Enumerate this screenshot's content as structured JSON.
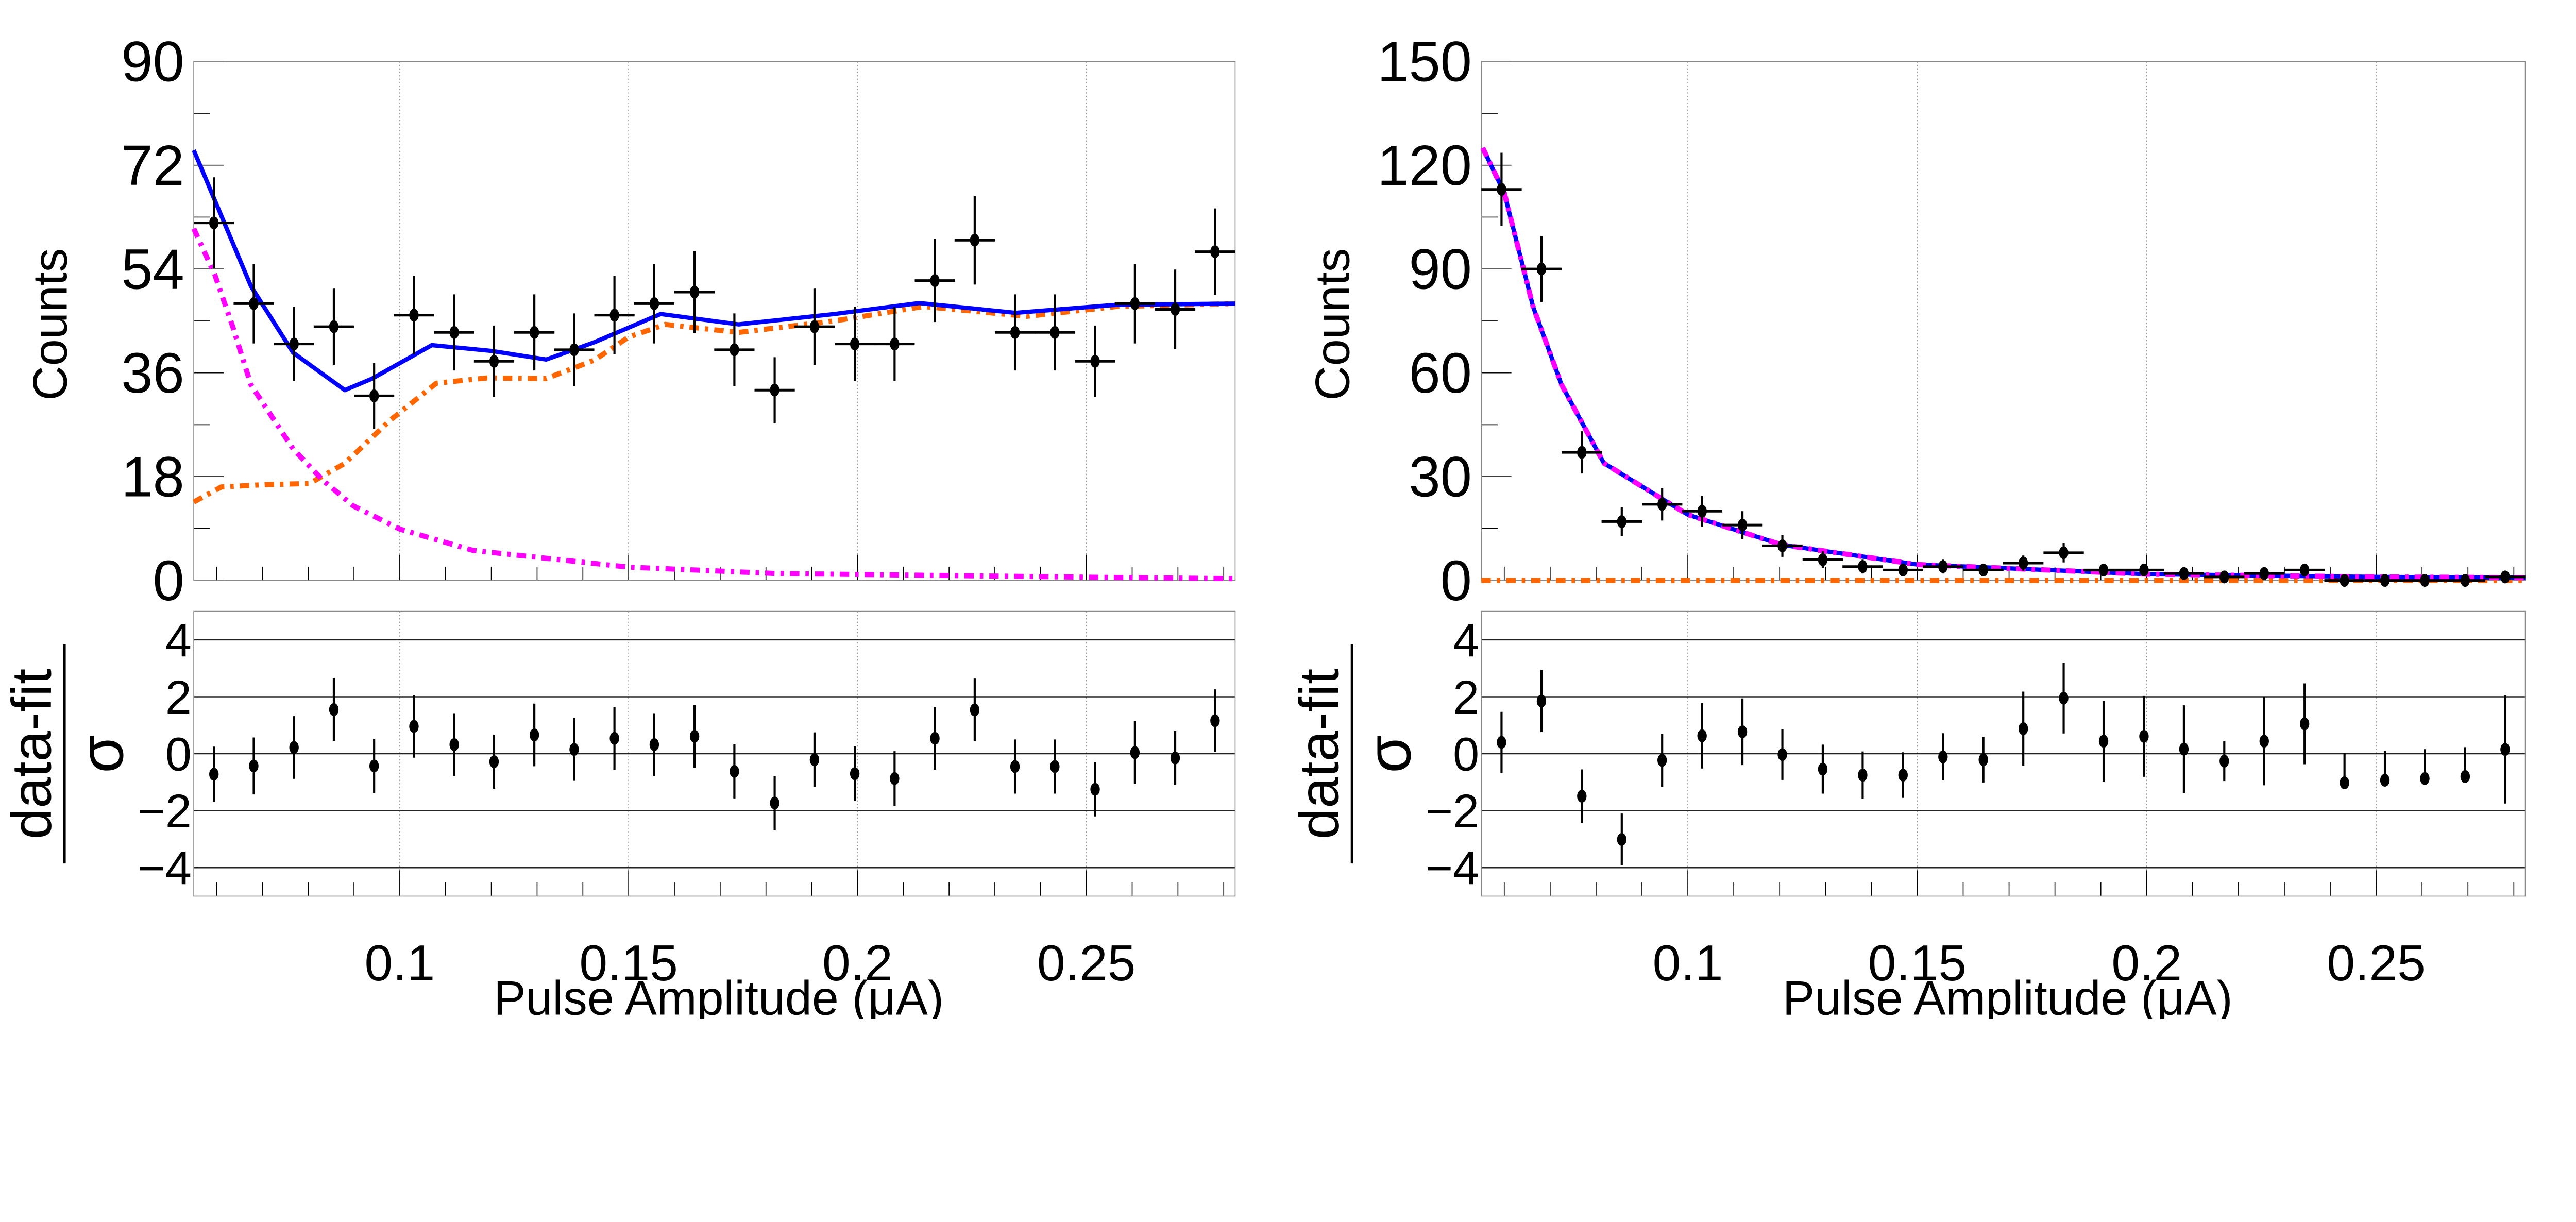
{
  "chart_data": [
    {
      "type": "scatter",
      "xlabel": "Pulse Amplitude (μA)",
      "ylabel": "Counts",
      "xlim": [
        0.055,
        0.2825
      ],
      "ylim": [
        0,
        90
      ],
      "grid": "vertical dotted at major x ticks",
      "xticks": [
        0.1,
        0.15,
        0.2,
        0.25
      ],
      "xtick_labels": [
        "0.1",
        "0.15",
        "0.2",
        "0.25"
      ],
      "yticks": [
        0,
        18,
        36,
        54,
        72,
        90
      ],
      "ytick_labels": [
        "0",
        "18",
        "36",
        "54",
        "72",
        "90"
      ],
      "data": {
        "x": [
          0.0594,
          0.0681,
          0.0769,
          0.0856,
          0.0944,
          0.1031,
          0.1119,
          0.1206,
          0.1294,
          0.1381,
          0.1469,
          0.1556,
          0.1644,
          0.1731,
          0.1819,
          0.1906,
          0.1994,
          0.2081,
          0.2169,
          0.2256,
          0.2344,
          0.2431,
          0.2519,
          0.2606,
          0.2694,
          0.2781
        ],
        "xerr": 0.0044,
        "y": [
          62,
          48,
          41,
          44,
          32,
          46,
          43,
          38,
          43,
          40,
          46,
          48,
          50,
          40,
          33,
          44,
          41,
          41,
          52,
          59,
          43,
          43,
          38,
          48,
          47,
          57
        ],
        "yerr": [
          7.9,
          6.9,
          6.4,
          6.6,
          5.7,
          6.8,
          6.6,
          6.2,
          6.6,
          6.3,
          6.8,
          6.9,
          7.1,
          6.3,
          5.7,
          6.6,
          6.4,
          6.4,
          7.2,
          7.7,
          6.6,
          6.6,
          6.2,
          6.9,
          6.9,
          7.5
        ]
      },
      "curves": [
        {
          "color": "#ff6600",
          "style": "dash-dot",
          "points": [
            [
              0.055,
              13.6
            ],
            [
              0.061,
              16.2
            ],
            [
              0.0705,
              16.6
            ],
            [
              0.0803,
              16.8
            ],
            [
              0.088,
              20.3
            ],
            [
              0.0978,
              27.7
            ],
            [
              0.108,
              34.2
            ],
            [
              0.119,
              35.1
            ],
            [
              0.132,
              35.0
            ],
            [
              0.1425,
              38.2
            ],
            [
              0.15,
              42.2
            ],
            [
              0.158,
              44.4
            ],
            [
              0.174,
              43.0
            ],
            [
              0.195,
              45.0
            ],
            [
              0.2145,
              47.5
            ],
            [
              0.237,
              45.8
            ],
            [
              0.2567,
              47.5
            ],
            [
              0.2825,
              48.0
            ]
          ]
        },
        {
          "color": "#ff00ff",
          "style": "dash-dot",
          "points": [
            [
              0.055,
              61
            ],
            [
              0.0596,
              53
            ],
            [
              0.0636,
              43.8
            ],
            [
              0.0675,
              33.9
            ],
            [
              0.0767,
              22.8
            ],
            [
              0.0833,
              17.3
            ],
            [
              0.0899,
              12.9
            ],
            [
              0.1,
              8.9
            ],
            [
              0.116,
              5.2
            ],
            [
              0.15,
              2.3
            ],
            [
              0.182,
              1.2
            ],
            [
              0.2567,
              0.5
            ],
            [
              0.2825,
              0.3
            ]
          ]
        },
        {
          "color": "#0000ff",
          "style": "solid",
          "points": [
            [
              0.055,
              74.6
            ],
            [
              0.0675,
              51
            ],
            [
              0.0767,
              39.5
            ],
            [
              0.088,
              33
            ],
            [
              0.094,
              35
            ],
            [
              0.107,
              40.8
            ],
            [
              0.12,
              39.8
            ],
            [
              0.132,
              38.3
            ],
            [
              0.1425,
              41.3
            ],
            [
              0.157,
              46.2
            ],
            [
              0.174,
              44.4
            ],
            [
              0.195,
              46.2
            ],
            [
              0.2135,
              48.1
            ],
            [
              0.2345,
              46.4
            ],
            [
              0.2567,
              47.8
            ],
            [
              0.2825,
              48.0
            ]
          ]
        }
      ],
      "residuals": {
        "ylabel_numerator": "data-fit",
        "ylabel_denominator": "σ",
        "ylim": [
          -5,
          5
        ],
        "yticks": [
          -4,
          -2,
          0,
          2,
          4
        ],
        "ytick_labels": [
          "−4",
          "−2",
          "0",
          "2",
          "4"
        ],
        "y": [
          -0.72,
          -0.43,
          0.22,
          1.55,
          -0.43,
          0.96,
          0.32,
          -0.28,
          0.66,
          0.15,
          0.54,
          0.32,
          0.61,
          -0.62,
          -1.73,
          -0.21,
          -0.7,
          -0.87,
          0.54,
          1.54,
          -0.45,
          -0.45,
          -1.25,
          0.04,
          -0.15,
          1.16
        ],
        "yerr_low": [
          0.97,
          1.0,
          1.1,
          1.1,
          0.95,
          1.1,
          1.1,
          0.95,
          1.1,
          1.1,
          1.1,
          1.1,
          1.1,
          0.95,
          0.95,
          0.96,
          0.96,
          0.96,
          1.1,
          1.1,
          0.95,
          0.95,
          0.95,
          1.1,
          0.95,
          1.1
        ],
        "yerr_high": [
          0.97,
          1.0,
          1.1,
          1.1,
          0.95,
          1.1,
          1.1,
          0.95,
          1.1,
          1.1,
          1.1,
          1.1,
          1.1,
          0.95,
          0.95,
          0.96,
          0.96,
          0.96,
          1.1,
          1.1,
          0.95,
          0.95,
          0.95,
          1.1,
          0.95,
          1.1
        ]
      }
    },
    {
      "type": "scatter",
      "xlabel": "Pulse Amplitude (μA)",
      "ylabel": "Counts",
      "xlim": [
        0.055,
        0.2825
      ],
      "ylim": [
        0,
        150
      ],
      "grid": "vertical dotted at major x ticks",
      "xticks": [
        0.1,
        0.15,
        0.2,
        0.25
      ],
      "xtick_labels": [
        "0.1",
        "0.15",
        "0.2",
        "0.25"
      ],
      "yticks": [
        0,
        30,
        60,
        90,
        120,
        150
      ],
      "ytick_labels": [
        "0",
        "30",
        "60",
        "90",
        "120",
        "150"
      ],
      "data": {
        "x": [
          0.0594,
          0.0681,
          0.0769,
          0.0856,
          0.0944,
          0.1031,
          0.1119,
          0.1206,
          0.1294,
          0.1381,
          0.1469,
          0.1556,
          0.1644,
          0.1731,
          0.1819,
          0.1906,
          0.1994,
          0.2081,
          0.2169,
          0.2256,
          0.2344,
          0.2431,
          0.2519,
          0.2606,
          0.2694,
          0.2781
        ],
        "xerr": 0.0044,
        "y": [
          113,
          90,
          37,
          17,
          22,
          20,
          16,
          10,
          6,
          4,
          3,
          4,
          3,
          5,
          8,
          3,
          3,
          2,
          1,
          2,
          3,
          0,
          0,
          0,
          0,
          1
        ],
        "yerr": [
          10.6,
          9.5,
          6.1,
          4.1,
          4.7,
          4.5,
          4.0,
          3.2,
          2.4,
          2.0,
          1.7,
          2.0,
          1.7,
          2.2,
          2.8,
          1.7,
          1.7,
          1.4,
          1.0,
          1.4,
          1.7,
          0,
          0,
          0,
          0,
          1.0
        ]
      },
      "curves": [
        {
          "color": "#ff6600",
          "style": "dash-dot",
          "points": [
            [
              0.055,
              0
            ],
            [
              0.2825,
              0
            ]
          ]
        },
        {
          "color": "#0000ff",
          "style": "solid",
          "points": [
            [
              0.0553,
              125
            ],
            [
              0.06,
              112
            ],
            [
              0.0663,
              79
            ],
            [
              0.0725,
              56.5
            ],
            [
              0.0817,
              33.9
            ],
            [
              0.1,
              19
            ],
            [
              0.1205,
              10.3
            ],
            [
              0.15,
              4.6
            ],
            [
              0.2,
              1.8
            ],
            [
              0.25,
              1.0
            ],
            [
              0.2825,
              0.8
            ]
          ]
        },
        {
          "color": "#ff00ff",
          "style": "dash-dot",
          "points": [
            [
              0.0553,
              125
            ],
            [
              0.06,
              112
            ],
            [
              0.0663,
              79
            ],
            [
              0.0725,
              56.5
            ],
            [
              0.0817,
              33.9
            ],
            [
              0.1,
              19
            ],
            [
              0.1205,
              10.3
            ],
            [
              0.15,
              4.6
            ],
            [
              0.2,
              1.8
            ],
            [
              0.25,
              1.0
            ],
            [
              0.2825,
              0.8
            ]
          ]
        }
      ],
      "residuals": {
        "ylabel_numerator": "data-fit",
        "ylabel_denominator": "σ",
        "ylim": [
          -5,
          5
        ],
        "yticks": [
          -4,
          -2,
          0,
          2,
          4
        ],
        "ytick_labels": [
          "−4",
          "−2",
          "0",
          "2",
          "4"
        ],
        "y": [
          0.4,
          1.85,
          -1.49,
          -3.01,
          -0.23,
          0.63,
          0.77,
          -0.03,
          -0.54,
          -0.75,
          -0.75,
          -0.11,
          -0.21,
          0.88,
          1.95,
          0.44,
          0.61,
          0.16,
          -0.26,
          0.44,
          1.05,
          -1.02,
          -0.93,
          -0.87,
          -0.8,
          0.15
        ],
        "yerr_low": [
          1.07,
          1.09,
          0.94,
          0.91,
          0.93,
          1.15,
          1.17,
          0.89,
          0.86,
          0.83,
          0.8,
          0.83,
          0.8,
          1.3,
          1.24,
          1.42,
          1.42,
          1.54,
          0.7,
          1.55,
          1.42,
          0,
          0,
          0,
          0,
          1.9
        ],
        "yerr_high": [
          1.07,
          1.09,
          0.94,
          0.91,
          0.93,
          1.15,
          1.17,
          0.89,
          0.86,
          0.83,
          0.8,
          0.83,
          0.8,
          1.3,
          1.24,
          1.42,
          1.42,
          1.54,
          0.7,
          1.55,
          1.42,
          1.04,
          1.03,
          1.03,
          1.03,
          1.9
        ]
      }
    }
  ]
}
